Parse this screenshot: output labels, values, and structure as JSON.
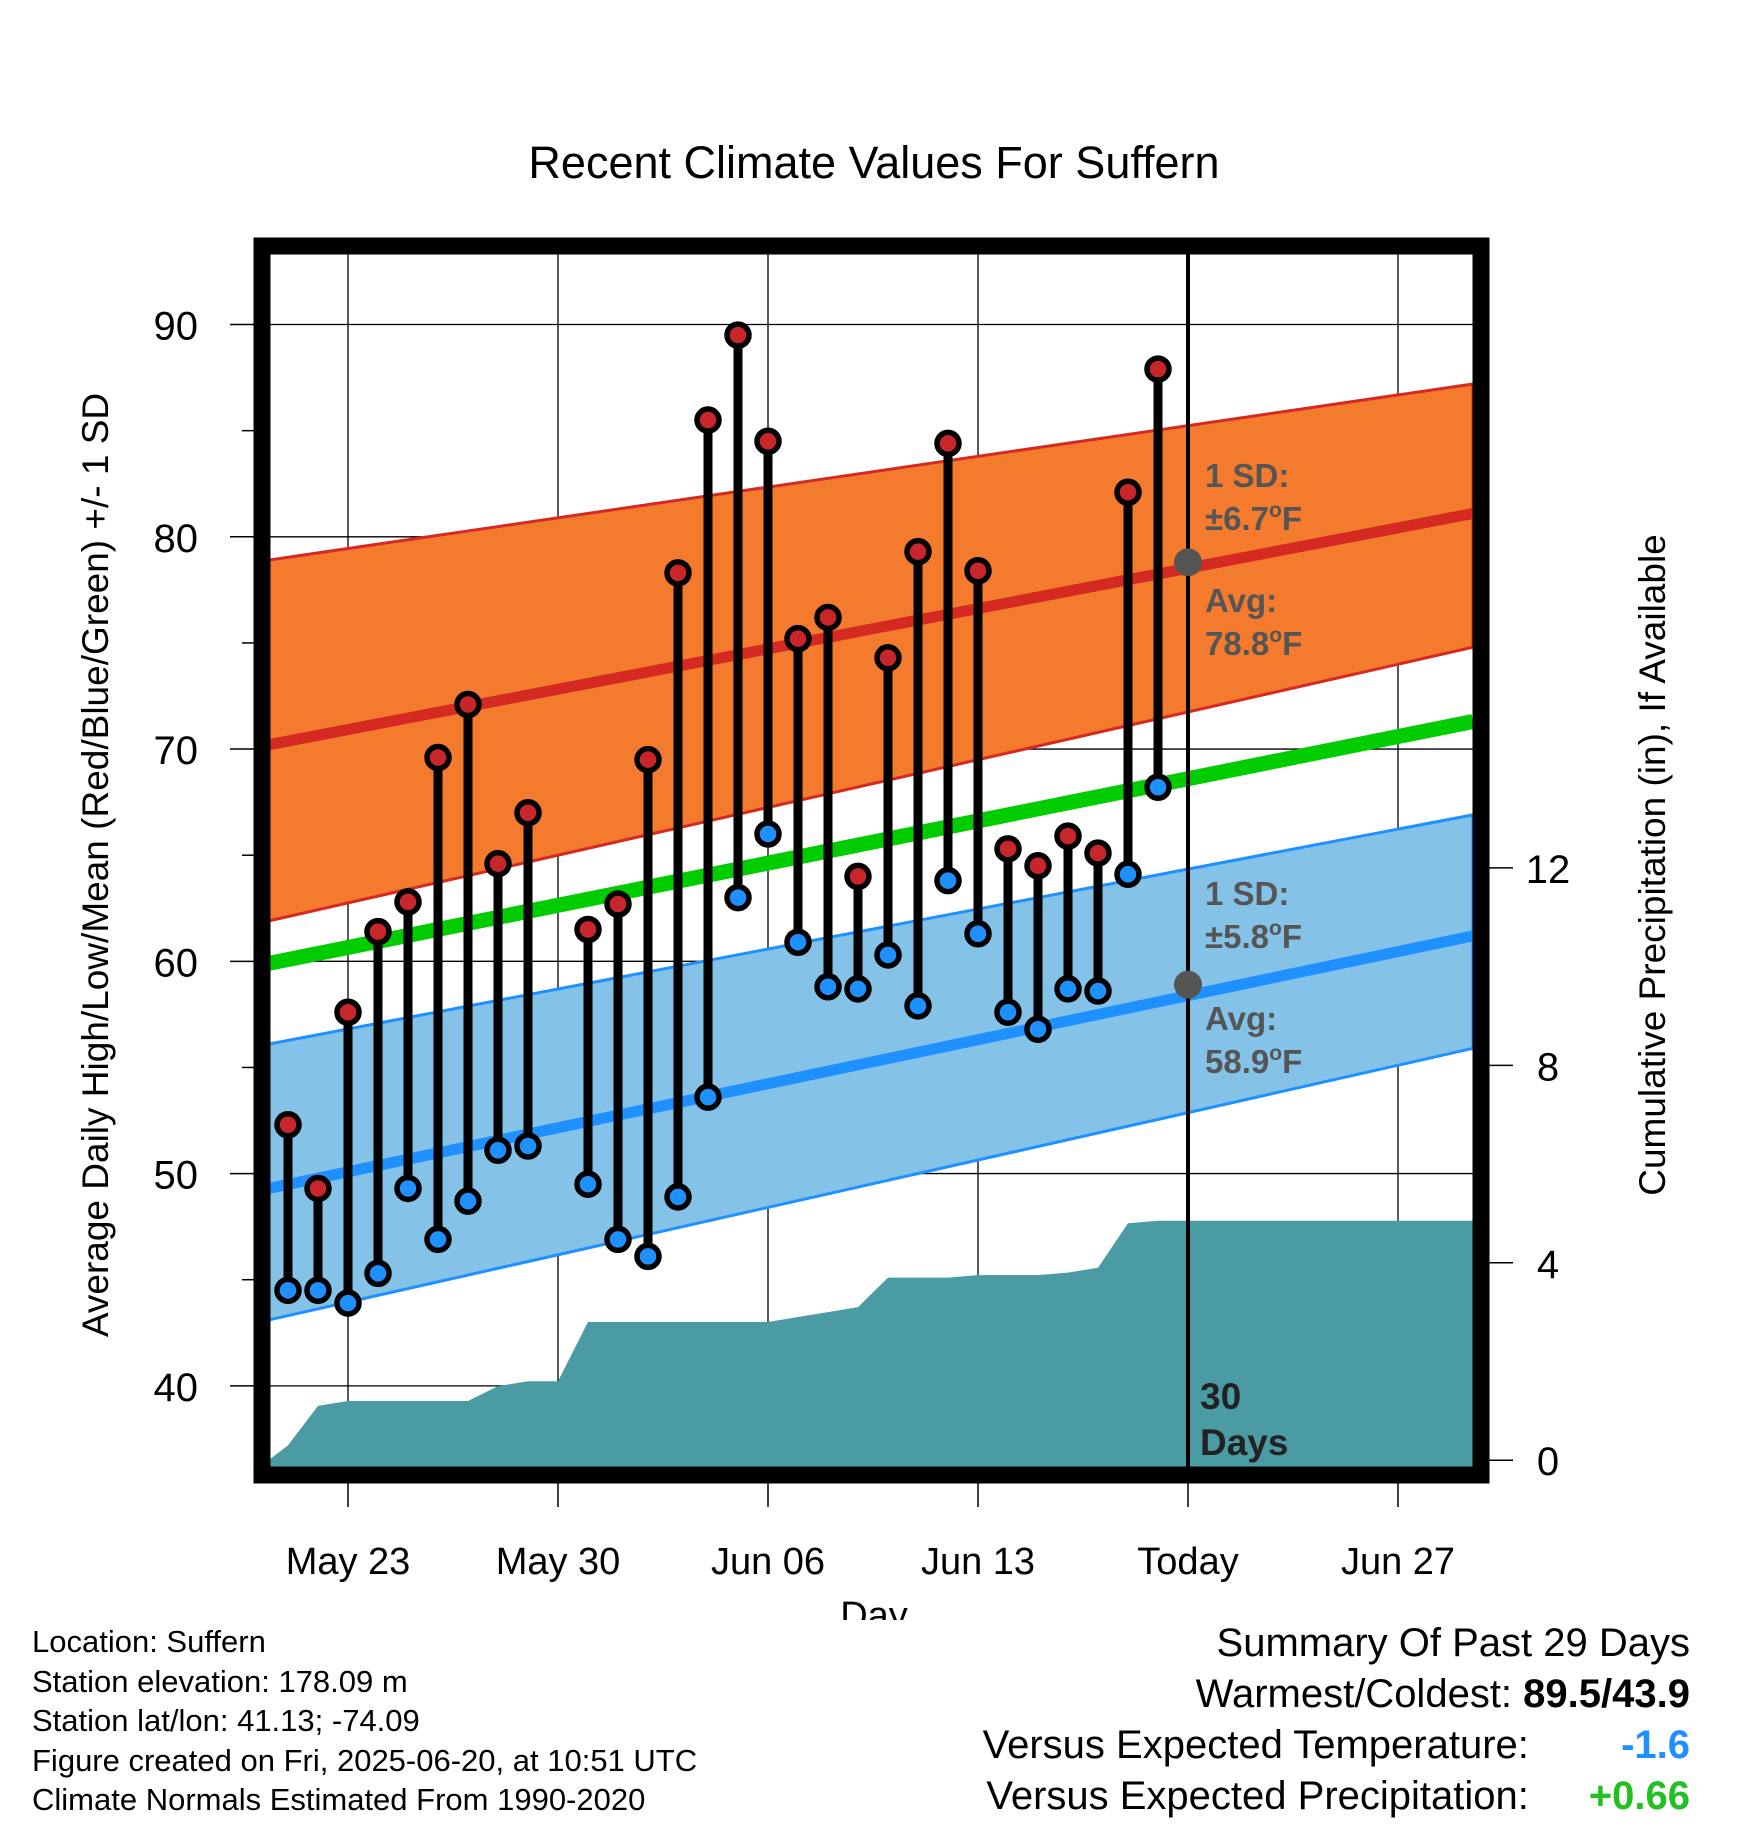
{
  "title": "Recent Climate Values For Suffern",
  "chart_data": {
    "type": "line",
    "title": "Recent Climate Values For Suffern",
    "xlabel": "Day",
    "ylabel": "Average Daily High/Low/Mean (Red/Blue/Green) +/- 1 SD",
    "y2label": "Cumulative Precipitation (in), If Available",
    "ylim": [
      35.8,
      93.7
    ],
    "y2lim": [
      -0.3,
      24.6
    ],
    "yticks": [
      40,
      50,
      60,
      70,
      80,
      90
    ],
    "y2ticks": [
      0,
      4,
      8,
      12
    ],
    "xticks": [
      {
        "day": 0,
        "label": "May 23"
      },
      {
        "day": 7,
        "label": "May 30"
      },
      {
        "day": 14,
        "label": "Jun 06"
      },
      {
        "day": 21,
        "label": "Jun 13"
      },
      {
        "day": 28,
        "label": "Today"
      },
      {
        "day": 35,
        "label": "Jun 27"
      }
    ],
    "xlim": [
      -2.65,
      37.5
    ],
    "grid": true,
    "today_day": 28,
    "today_label": "30 Days",
    "observations": {
      "days": [
        -2,
        -1,
        0,
        1,
        2,
        3,
        4,
        5,
        6,
        8,
        9,
        10,
        11,
        12,
        13,
        14,
        15,
        16,
        17,
        18,
        19,
        20,
        21,
        22,
        23,
        24,
        25,
        26,
        27
      ],
      "high": [
        52.3,
        49.3,
        57.6,
        61.4,
        62.8,
        69.6,
        72.1,
        64.6,
        67.0,
        61.5,
        62.7,
        69.5,
        78.3,
        85.5,
        89.5,
        84.5,
        75.2,
        76.2,
        64.0,
        74.3,
        79.3,
        84.4,
        78.4,
        65.3,
        64.5,
        65.9,
        65.1,
        82.1,
        87.9
      ],
      "low": [
        44.5,
        44.5,
        43.9,
        45.3,
        49.3,
        46.9,
        48.7,
        51.1,
        51.3,
        49.5,
        46.9,
        46.1,
        48.9,
        53.6,
        63.0,
        66.0,
        60.9,
        58.8,
        58.7,
        60.3,
        57.9,
        63.8,
        61.3,
        57.6,
        56.8,
        58.7,
        58.6,
        64.1,
        68.2
      ]
    },
    "normals": {
      "days": [
        -2.65,
        37.5
      ],
      "avg_high": [
        70.2,
        81.1
      ],
      "high_upper": [
        78.9,
        87.2
      ],
      "high_lower": [
        61.9,
        74.8
      ],
      "avg_mean": [
        59.9,
        71.3
      ],
      "avg_low": [
        49.3,
        61.2
      ],
      "low_upper": [
        56.1,
        66.9
      ],
      "low_lower": [
        43.1,
        55.9
      ]
    },
    "precip_cumulative": {
      "days": [
        -2.65,
        -2,
        -1,
        0,
        1,
        2,
        3,
        4,
        5,
        6,
        7,
        8,
        9,
        10,
        11,
        12,
        13,
        14,
        15,
        16,
        17,
        18,
        19,
        20,
        21,
        22,
        23,
        24,
        25,
        26,
        27,
        28,
        37.5
      ],
      "values": [
        0,
        0.3,
        1.1,
        1.2,
        1.2,
        1.2,
        1.2,
        1.2,
        1.5,
        1.6,
        1.6,
        2.8,
        2.8,
        2.8,
        2.8,
        2.8,
        2.8,
        2.8,
        2.9,
        3.0,
        3.1,
        3.7,
        3.7,
        3.7,
        3.75,
        3.75,
        3.75,
        3.8,
        3.9,
        4.8,
        4.85,
        4.85,
        4.85
      ]
    },
    "colors": {
      "high_band": "#f47b2e",
      "high_line": "#d42a22",
      "low_band": "#84c2e8",
      "low_line": "#1e90ff",
      "mean_line": "#00cc00",
      "precip": "#4a9ba3",
      "high_marker": "#c8262a",
      "low_marker": "#1e90ff",
      "annotation": "#555555"
    },
    "annotations": {
      "high_sd_label": "1 SD:",
      "high_sd_value": "±6.7",
      "high_avg_label": "Avg:",
      "high_avg_value": "78.8",
      "low_sd_label": "1 SD:",
      "low_sd_value": "±5.8",
      "low_avg_label": "Avg:",
      "low_avg_value": "58.9",
      "degree": "o",
      "unit": "F",
      "today_high_avg": 78.8,
      "today_low_avg": 58.9
    }
  },
  "footer": {
    "location": "Location: Suffern",
    "elevation": "Station elevation: 178.09 m",
    "latlon": "Station lat/lon: 41.13; -74.09",
    "created": "Figure created on Fri, 2025-06-20, at 10:51 UTC",
    "normals": "Climate Normals Estimated From 1990-2020"
  },
  "summary": {
    "heading": "Summary Of Past 29 Days",
    "warm_cold_label": "Warmest/Coldest:",
    "warm_cold_value": "89.5/43.9",
    "temp_label": "Versus Expected Temperature:",
    "temp_value": "-1.6",
    "precip_label": "Versus Expected Precipitation:",
    "precip_value": "+0.66"
  }
}
